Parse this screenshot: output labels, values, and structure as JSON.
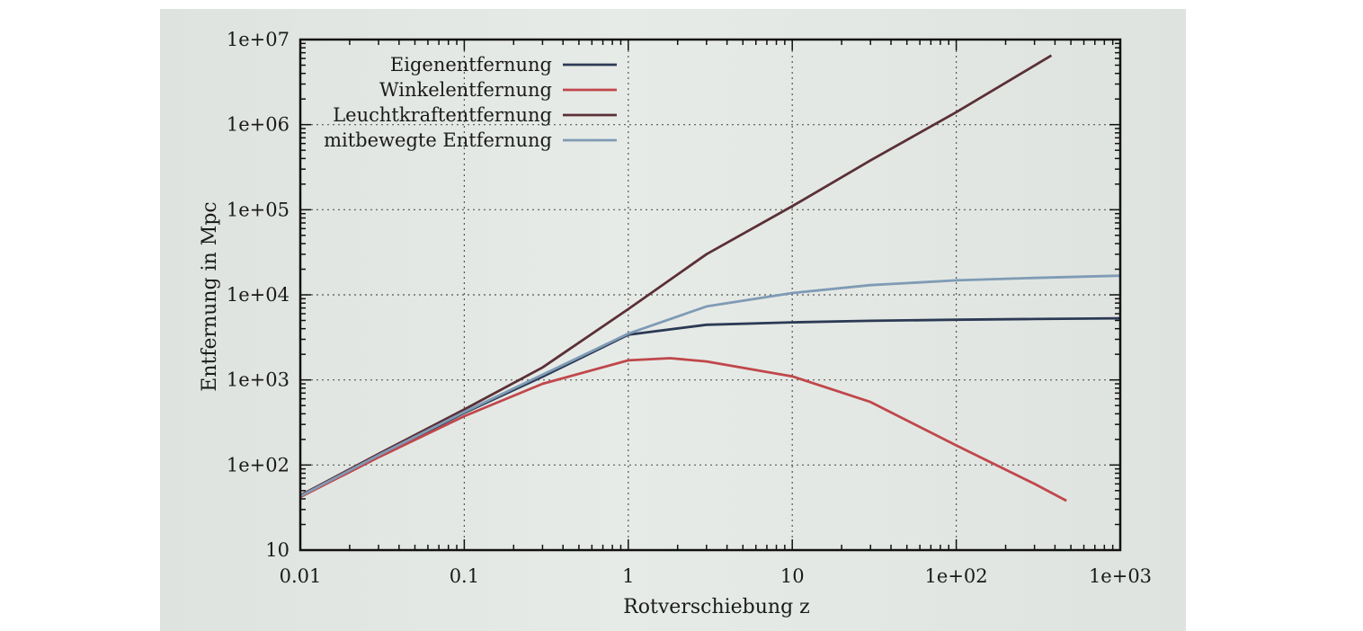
{
  "chart_data": {
    "type": "line",
    "title": "",
    "xlabel": "Rotverschiebung z",
    "ylabel": "Entfernung in Mpc",
    "xscale": "log",
    "yscale": "log",
    "xlim": [
      0.01,
      1000
    ],
    "ylim": [
      10,
      10000000
    ],
    "grid": true,
    "legend_position": "top-left",
    "x_tick_labels": [
      "0.01",
      "0.1",
      "1",
      "10",
      "1e+02",
      "1e+03"
    ],
    "y_tick_labels": [
      "10",
      "1e+02",
      "1e+03",
      "1e+04",
      "1e+05",
      "1e+06",
      "1e+07"
    ],
    "series": [
      {
        "name": "Eigenentfernung",
        "color": "#2c3a55",
        "x": [
          0.01,
          0.03,
          0.1,
          0.3,
          1,
          3,
          10,
          30,
          100,
          300,
          1000
        ],
        "values": [
          43,
          127,
          410,
          1090,
          3400,
          4450,
          4750,
          4950,
          5100,
          5200,
          5300
        ]
      },
      {
        "name": "Winkelentfernung",
        "color": "#c0474b",
        "x": [
          0.01,
          0.03,
          0.1,
          0.3,
          1,
          1.8,
          3,
          10,
          30,
          100,
          300,
          470
        ],
        "values": [
          42,
          123,
          375,
          900,
          1700,
          1800,
          1650,
          1100,
          550,
          170,
          60,
          38
        ]
      },
      {
        "name": "Leuchtkraftentfernung",
        "color": "#5a3036",
        "x": [
          0.01,
          0.03,
          0.1,
          0.3,
          1,
          3,
          10,
          30,
          100,
          380
        ],
        "values": [
          44,
          135,
          450,
          1400,
          6800,
          30000,
          110000,
          380000,
          1400000,
          6500000
        ]
      },
      {
        "name": "mitbewegte Entfernung",
        "color": "#7f9bb5",
        "x": [
          0.01,
          0.03,
          0.1,
          0.3,
          1,
          3,
          10,
          30,
          100,
          300,
          1000
        ],
        "values": [
          43,
          130,
          420,
          1150,
          3500,
          7300,
          10500,
          13000,
          14800,
          15800,
          16800
        ]
      }
    ]
  }
}
